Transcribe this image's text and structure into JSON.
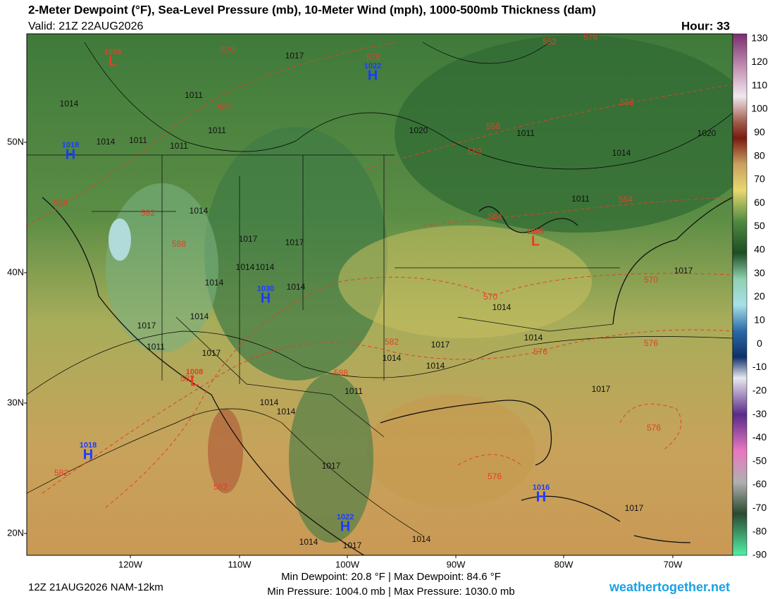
{
  "header": {
    "title": "2-Meter Dewpoint (°F), Sea-Level Pressure (mb), 10-Meter Wind (mph), 1000-500mb Thickness (dam)",
    "valid": "Valid: 21Z 22AUG2026",
    "hour": "Hour: 33"
  },
  "colorbar": {
    "ticks": [
      130,
      120,
      110,
      100,
      90,
      80,
      70,
      60,
      50,
      40,
      30,
      20,
      10,
      0,
      -10,
      -20,
      -30,
      -40,
      -50,
      -60,
      -70,
      -80,
      -90
    ]
  },
  "lat_labels": [
    "50N",
    "40N",
    "30N",
    "20N"
  ],
  "lon_labels": [
    "120W",
    "110W",
    "100W",
    "90W",
    "80W",
    "70W"
  ],
  "pressure_centers": [
    {
      "symbol": "L",
      "value": "1006"
    },
    {
      "symbol": "H",
      "value": "1022"
    },
    {
      "symbol": "H",
      "value": "1018"
    },
    {
      "symbol": "H",
      "value": "1030"
    },
    {
      "symbol": "L",
      "value": "1008"
    },
    {
      "symbol": "L",
      "value": "1009"
    },
    {
      "symbol": "H",
      "value": "1018"
    },
    {
      "symbol": "H",
      "value": "1016"
    },
    {
      "symbol": "H",
      "value": "1022"
    }
  ],
  "isobar_labels": [
    "1017",
    "1014",
    "1011",
    "1011",
    "1011",
    "1014",
    "1011",
    "1020",
    "1011",
    "1014",
    "1020",
    "1011",
    "1014",
    "1017",
    "1017",
    "1014",
    "1014",
    "1014",
    "1017",
    "1014",
    "1011",
    "1017",
    "1014",
    "1014",
    "1014",
    "1017",
    "1014",
    "1014",
    "1011",
    "1017",
    "1017",
    "1017",
    "1014",
    "1014",
    "1014",
    "1014",
    "1017",
    "1017"
  ],
  "thickness_labels": [
    "570",
    "582",
    "576",
    "552",
    "558",
    "558",
    "564",
    "582",
    "588",
    "582",
    "588",
    "582",
    "564",
    "570",
    "570",
    "576",
    "576",
    "576",
    "582",
    "582",
    "576",
    "576",
    "558",
    "552"
  ],
  "footer": {
    "run": "12Z 21AUG2026 NAM-12km",
    "dewpoint_range": "Min Dewpoint:  20.8 °F | Max Dewpoint:  84.6 °F",
    "pressure_range": "Min Pressure: 1004.0 mb | Max Pressure: 1030.0 mb",
    "site": "weathertogether.net"
  }
}
